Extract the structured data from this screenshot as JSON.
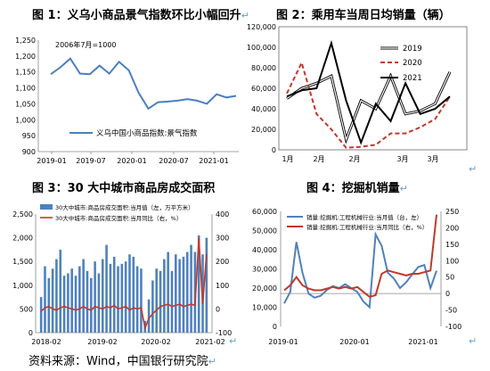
{
  "titles": {
    "fig1": "图 1：义乌小商品景气指数环比小幅回升",
    "fig2": "图 2：乘用车当周日均销量（辆）",
    "fig3": "图 3：30 大中城市商品房成交面积",
    "fig4": "图 4：挖掘机销量"
  },
  "return_mark": "↵",
  "source": "资料来源：Wind，中国银行研究院",
  "chart_data": [
    {
      "id": "fig1",
      "type": "line",
      "annotation": "2006年7月=1000",
      "ylim": [
        900,
        1250
      ],
      "yticks": [
        "1,250",
        "1,200",
        "1,150",
        "1,100",
        "1,050",
        "1,000",
        "950",
        "900"
      ],
      "xticks": [
        "2019-01",
        "2019-07",
        "2020-01",
        "2020-07",
        "2021-01"
      ],
      "legend_position": "bottom-left",
      "color": "#4a7fc1",
      "series": [
        {
          "name": "义乌中国小商品指数:景气指数",
          "values": [
            1143,
            1165,
            1192,
            1145,
            1143,
            1170,
            1145,
            1182,
            1155,
            1085,
            1035,
            1055,
            1057,
            1060,
            1065,
            1060,
            1050,
            1080,
            1070,
            1075
          ]
        }
      ]
    },
    {
      "id": "fig2",
      "type": "line",
      "ylim": [
        0,
        120000
      ],
      "yticks": [
        "120,000",
        "100,000",
        "80,000",
        "60,000",
        "40,000",
        "20,000",
        "0"
      ],
      "xticks": [
        "1月",
        "2月",
        "2月",
        "3月",
        "3月"
      ],
      "legend_position": "top-right",
      "series": [
        {
          "name": "2019",
          "style": "double",
          "values": [
            50000,
            60000,
            65000,
            72000,
            10000,
            48000,
            40000,
            72000,
            35000,
            38000,
            45000,
            76000
          ]
        },
        {
          "name": "2020",
          "style": "dashed",
          "color": "#c0392b",
          "values": [
            55000,
            85000,
            35000,
            20000,
            2000,
            3000,
            5000,
            16000,
            16000,
            22000,
            30000,
            52000
          ]
        },
        {
          "name": "2021",
          "style": "solid",
          "color": "#000000",
          "values": [
            52000,
            58000,
            60000,
            104000,
            48000,
            7000,
            45000,
            28000,
            65000,
            35000,
            40000,
            52000
          ]
        }
      ]
    },
    {
      "id": "fig3",
      "type": "bar",
      "yticks_left": [
        "2,500",
        "2,000",
        "1,500",
        "1,000",
        "500",
        "0"
      ],
      "yticks_right": [
        "400",
        "300",
        "200",
        "100",
        "0",
        "-100"
      ],
      "ylim_left": [
        0,
        2500
      ],
      "ylim_right": [
        -100,
        400
      ],
      "xticks": [
        "2018-02",
        "2019-02",
        "2020-02",
        "2021-02"
      ],
      "legend_position": "top-left",
      "series": [
        {
          "name": "30大中城市:商品房成交面积:当月值（左，万平方米）",
          "axis": "left",
          "color": "#4f81bd",
          "values": [
            750,
            1400,
            1150,
            1350,
            1550,
            1750,
            1200,
            1250,
            1350,
            1200,
            1400,
            1550,
            1300,
            1150,
            1500,
            1250,
            1550,
            1850,
            1450,
            1600,
            1400,
            1450,
            1500,
            1650,
            1600,
            1400,
            1350,
            250,
            700,
            1100,
            1350,
            1300,
            1550,
            1700,
            1300,
            1650,
            1550,
            1600,
            1700,
            1850,
            1700,
            2050,
            1650,
            2000
          ]
        },
        {
          "name": "30大中城市:商品房成交面积:当月同比（右，%）",
          "axis": "right",
          "color": "#c0392b",
          "values": [
            -10,
            5,
            10,
            0,
            -5,
            5,
            10,
            5,
            0,
            -5,
            0,
            10,
            0,
            -5,
            10,
            5,
            0,
            10,
            5,
            15,
            0,
            5,
            10,
            -5,
            5,
            0,
            5,
            -80,
            -40,
            -20,
            -5,
            10,
            15,
            20,
            10,
            15,
            20,
            10,
            15,
            20,
            15,
            300,
            20,
            230
          ]
        }
      ]
    },
    {
      "id": "fig4",
      "type": "line",
      "yticks_left": [
        "60,000",
        "50,000",
        "40,000",
        "30,000",
        "20,000",
        "10,000",
        "0"
      ],
      "yticks_right": [
        "250",
        "200",
        "150",
        "100",
        "50",
        "0",
        "-50",
        "-100"
      ],
      "ylim_left": [
        0,
        60000
      ],
      "ylim_right": [
        -100,
        250
      ],
      "xticks": [
        "2019-01",
        "2020-01",
        "2021-01"
      ],
      "legend_position": "top-left",
      "series": [
        {
          "name": "销量:挖掘机:工程机械行业:当月值（台，左）",
          "axis": "left",
          "color": "#4f81bd",
          "values": [
            12000,
            18000,
            44000,
            28000,
            17000,
            15000,
            16000,
            19000,
            21000,
            20000,
            22000,
            20000,
            18000,
            13000,
            10000,
            48000,
            42000,
            28000,
            25000,
            20000,
            23000,
            27000,
            31000,
            32000,
            20000,
            29000
          ]
        },
        {
          "name": "销量:挖掘机:工程机械行业:当月同比（右，%）",
          "axis": "right",
          "color": "#c0392b",
          "values": [
            10,
            25,
            50,
            25,
            15,
            10,
            10,
            15,
            20,
            15,
            20,
            15,
            20,
            5,
            -10,
            -5,
            60,
            70,
            65,
            60,
            55,
            60,
            60,
            65,
            70,
            240
          ]
        }
      ]
    }
  ]
}
